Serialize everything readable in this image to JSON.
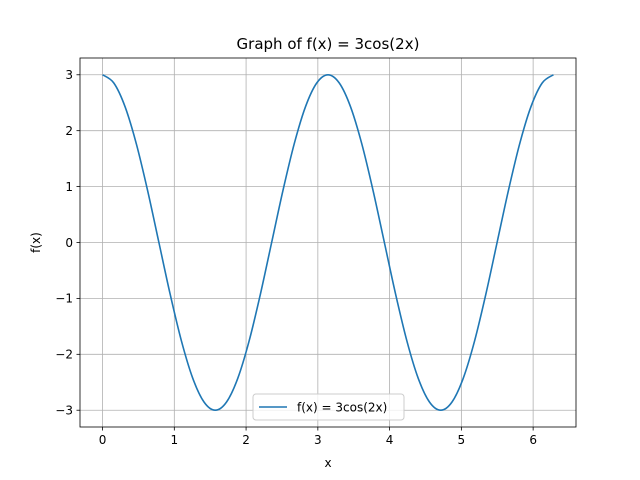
{
  "chart_data": {
    "type": "line",
    "title": "Graph of f(x) = 3cos(2x)",
    "xlabel": "x",
    "ylabel": "f(x)",
    "xlim": [
      -0.3142,
      6.5973
    ],
    "ylim": [
      -3.3,
      3.3
    ],
    "xticks": [
      0,
      1,
      2,
      3,
      4,
      5,
      6
    ],
    "xtick_labels": [
      "0",
      "1",
      "2",
      "3",
      "4",
      "5",
      "6"
    ],
    "yticks": [
      -3,
      -2,
      -1,
      0,
      1,
      2,
      3
    ],
    "ytick_labels": [
      "−3",
      "−2",
      "−1",
      "0",
      "1",
      "2",
      "3"
    ],
    "grid": true,
    "legend_position": "lower center",
    "series": [
      {
        "name": "f(x) = 3cos(2x)",
        "color": "#1f77b4",
        "x": [
          0.0,
          0.1571,
          0.3142,
          0.4712,
          0.6283,
          0.7854,
          0.9425,
          1.0996,
          1.2566,
          1.4137,
          1.5708,
          1.7279,
          1.885,
          2.042,
          2.1991,
          2.3562,
          2.5133,
          2.6704,
          2.8274,
          2.9845,
          3.1416,
          3.2987,
          3.4558,
          3.6128,
          3.7699,
          3.927,
          4.0841,
          4.2412,
          4.3982,
          4.5553,
          4.7124,
          4.8695,
          5.0265,
          5.1836,
          5.3407,
          5.4978,
          5.6549,
          5.8119,
          5.969,
          6.1261,
          6.2832
        ],
        "y": [
          3.0,
          2.853,
          2.427,
          1.763,
          0.927,
          0.0,
          -0.927,
          -1.763,
          -2.427,
          -2.853,
          -3.0,
          -2.853,
          -2.427,
          -1.763,
          -0.927,
          0.0,
          0.927,
          1.763,
          2.427,
          2.853,
          3.0,
          2.853,
          2.427,
          1.763,
          0.927,
          0.0,
          -0.927,
          -1.763,
          -2.427,
          -2.853,
          -3.0,
          -2.853,
          -2.427,
          -1.763,
          -0.927,
          0.0,
          0.927,
          1.763,
          2.427,
          2.853,
          3.0
        ]
      }
    ]
  }
}
